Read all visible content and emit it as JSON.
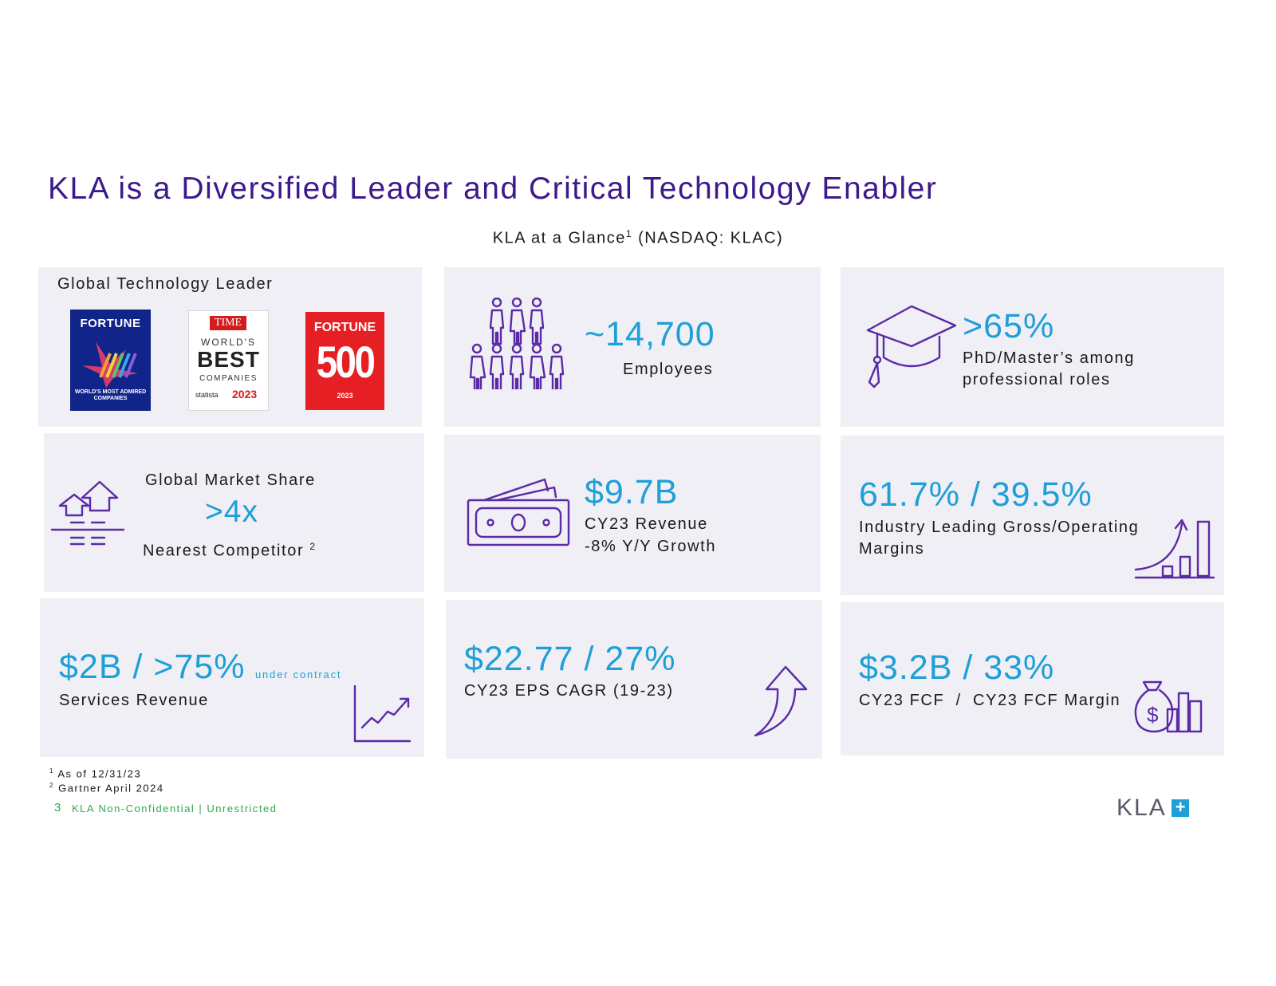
{
  "title": "KLA is a Diversified Leader and Critical Technology Enabler",
  "subtitle": {
    "text": "KLA at a Glance",
    "sup": "1",
    "suffix": " (NASDAQ: KLAC)"
  },
  "cards": {
    "global_leader": {
      "label": "Global Technology Leader",
      "logos": {
        "fortune_admired": {
          "top": "FORTUNE",
          "bottom": "WORLD'S MOST ADMIRED COMPANIES"
        },
        "time_best": {
          "top": "TIME",
          "line1": "WORLD'S",
          "line2": "BEST",
          "line3": "COMPANIES",
          "brand": "statista",
          "year": "2023"
        },
        "fortune_500": {
          "top": "FORTUNE",
          "number": "500",
          "year": "2023"
        }
      }
    },
    "employees": {
      "value": "~14,700",
      "label": "Employees",
      "icon": "people-icon"
    },
    "phd": {
      "value": ">65%",
      "line1": "PhD/Master’s among",
      "line2": "professional roles",
      "icon": "graduation-cap-icon"
    },
    "market_share": {
      "label": "Global Market Share",
      "value": ">4x",
      "sub": "Nearest Competitor",
      "sup": "2",
      "icon": "market-share-icon"
    },
    "revenue": {
      "value": "$9.7B",
      "line1": "CY23 Revenue",
      "line2": "-8% Y/Y Growth",
      "icon": "cash-icon"
    },
    "margins": {
      "value": "61.7% / 39.5%",
      "line1": "Industry Leading Gross/Operating",
      "line2": "Margins",
      "icon": "growth-chart-icon"
    },
    "services": {
      "value": "$2B / >75%",
      "note": "under contract",
      "label": "Services Revenue",
      "icon": "line-chart-icon"
    },
    "eps": {
      "value": "$22.77 / 27%",
      "label": "CY23 EPS CAGR (19-23)",
      "icon": "up-arrow-icon"
    },
    "fcf": {
      "value": "$3.2B / 33%",
      "label": "CY23 FCF  /  CY23 FCF Margin",
      "icon": "money-bag-icon"
    }
  },
  "footnotes": [
    {
      "sup": "1",
      "text": "As of 12/31/23"
    },
    {
      "sup": "2",
      "text": "Gartner April 2024"
    }
  ],
  "footer": {
    "page": "3",
    "classification": "KLA Non-Confidential | Unrestricted",
    "logo_text": "KLA",
    "logo_mark": "+"
  },
  "colors": {
    "title": "#3d1a8c",
    "accent": "#1e9fd8",
    "icon": "#5b2aa6",
    "card": "#f0eff5",
    "footer_green": "#2eaa4a"
  }
}
